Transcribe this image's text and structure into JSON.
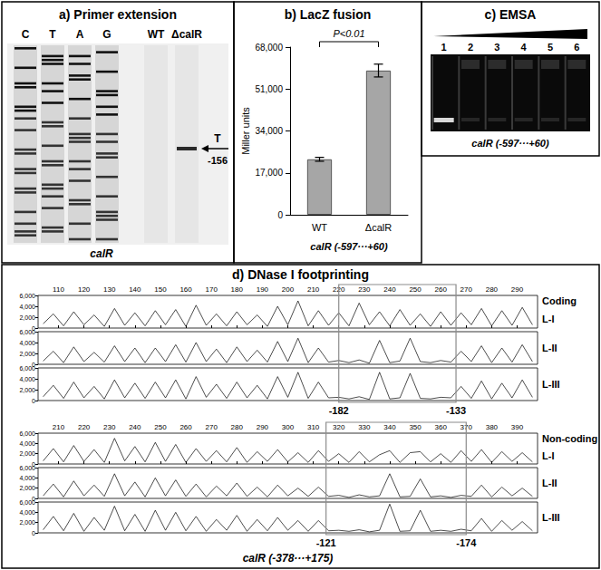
{
  "gels": {
    "primer_extension": {
      "title": "a) Primer extension",
      "lanes": [
        "C",
        "T",
        "A",
        "G",
        "WT",
        "ΔcalR"
      ],
      "band_lane": "ΔcalR",
      "arrow_text": [
        "T",
        "-156"
      ],
      "caption": "calR"
    },
    "emsa": {
      "title": "c) EMSA",
      "lanes": [
        1,
        2,
        3,
        4,
        5,
        6
      ],
      "caption": "calR (-597···+60)"
    }
  },
  "chart_data": [
    {
      "type": "bar",
      "title": "b) LacZ fusion",
      "categories": [
        "WT",
        "ΔcalR"
      ],
      "values": [
        22500,
        58500
      ],
      "errors": [
        800,
        2600
      ],
      "color": "#a6a6a6",
      "ylabel": "Miller units",
      "xlabel": "calR (-597···+60)",
      "ylim": [
        0,
        68000
      ],
      "yticks": [
        0,
        {
          "value": 17000,
          "label": "17,000"
        },
        {
          "value": 34000,
          "label": "34,000"
        },
        {
          "value": 51000,
          "label": "51,000"
        },
        {
          "value": 68000,
          "label": "68,000"
        }
      ],
      "annotation": "P<0.01",
      "grid": false
    },
    {
      "type": "line",
      "title": "d) DNase I footprinting",
      "subtitle": "Coding",
      "x": [
        104,
        108,
        112,
        116,
        120,
        124,
        128,
        132,
        136,
        140,
        144,
        148,
        152,
        156,
        160,
        164,
        168,
        172,
        176,
        180,
        184,
        188,
        192,
        196,
        200,
        204,
        208,
        212,
        216,
        220,
        224,
        228,
        232,
        236,
        240,
        244,
        248,
        252,
        256,
        260,
        264,
        268,
        272,
        276,
        280,
        284,
        288,
        292,
        296
      ],
      "series": [
        {
          "name": "L-I",
          "values": [
            800,
            2600,
            400,
            3000,
            600,
            2400,
            300,
            3600,
            500,
            2800,
            400,
            3200,
            600,
            3400,
            300,
            4200,
            500,
            2600,
            400,
            3000,
            600,
            2400,
            300,
            4000,
            600,
            5000,
            400,
            3200,
            500,
            2800,
            400,
            4600,
            600,
            3000,
            400,
            3400,
            500,
            2600,
            300,
            3000,
            500,
            2800,
            600,
            3600,
            400,
            3200,
            500,
            3800,
            600
          ]
        },
        {
          "name": "L-II",
          "values": [
            600,
            2400,
            300,
            3200,
            500,
            2200,
            400,
            3400,
            500,
            3000,
            300,
            3000,
            500,
            3600,
            400,
            4000,
            500,
            2800,
            300,
            3200,
            500,
            2600,
            400,
            4200,
            500,
            4800,
            300,
            3000,
            400,
            700,
            300,
            800,
            200,
            4400,
            300,
            600,
            4800,
            500,
            300,
            700,
            400,
            2400,
            500,
            3400,
            300,
            3000,
            400,
            3600,
            500
          ]
        },
        {
          "name": "L-III",
          "values": [
            700,
            2800,
            400,
            3400,
            500,
            2600,
            300,
            3800,
            500,
            3200,
            400,
            3400,
            500,
            3800,
            300,
            4400,
            600,
            3000,
            400,
            3400,
            500,
            2800,
            300,
            4400,
            600,
            5200,
            400,
            3400,
            500,
            600,
            300,
            700,
            200,
            5200,
            300,
            500,
            5000,
            400,
            300,
            600,
            500,
            2600,
            400,
            3600,
            300,
            3200,
            500,
            3800,
            600
          ]
        }
      ],
      "color": "#000000",
      "xlim": [
        102,
        298
      ],
      "xticks": [
        110,
        120,
        130,
        140,
        150,
        160,
        170,
        180,
        190,
        200,
        210,
        220,
        230,
        240,
        250,
        260,
        270,
        280,
        290
      ],
      "ylim": [
        0,
        6000
      ],
      "yticks": [
        0,
        {
          "value": 2000,
          "label": "2,000"
        },
        {
          "value": 4000,
          "label": "4,000"
        },
        {
          "value": 6000,
          "label": "6,000"
        }
      ],
      "footprint": {
        "range": [
          220,
          266
        ],
        "labels": [
          "-182",
          "-133"
        ]
      }
    },
    {
      "type": "line",
      "subtitle": "Non-coding",
      "xlabel": "calR (-378···+175)",
      "x": [
        204,
        208,
        212,
        216,
        220,
        224,
        228,
        232,
        236,
        240,
        244,
        248,
        252,
        256,
        260,
        264,
        268,
        272,
        276,
        280,
        284,
        288,
        292,
        296,
        300,
        304,
        308,
        312,
        316,
        320,
        324,
        328,
        332,
        336,
        340,
        344,
        348,
        352,
        356,
        360,
        364,
        368,
        372,
        376,
        380,
        384,
        388,
        392,
        396
      ],
      "series": [
        {
          "name": "L-I",
          "values": [
            600,
            3000,
            400,
            3600,
            500,
            2800,
            300,
            5000,
            600,
            3400,
            400,
            4200,
            500,
            3800,
            300,
            3000,
            500,
            2600,
            400,
            3200,
            300,
            2400,
            500,
            2800,
            400,
            2200,
            300,
            2600,
            500,
            2000,
            300,
            2400,
            400,
            1800,
            2600,
            300,
            2200,
            2400,
            400,
            2000,
            300,
            2600,
            500,
            2800,
            300,
            2400,
            500,
            2200,
            400
          ]
        },
        {
          "name": "L-II",
          "values": [
            500,
            2800,
            300,
            3400,
            500,
            2600,
            400,
            4800,
            500,
            3200,
            300,
            4000,
            500,
            3600,
            400,
            2800,
            300,
            2400,
            500,
            3000,
            400,
            2200,
            300,
            2600,
            500,
            2000,
            400,
            2200,
            400,
            600,
            200,
            700,
            300,
            500,
            4800,
            300,
            400,
            3800,
            300,
            500,
            200,
            600,
            400,
            2600,
            300,
            2200,
            500,
            2000,
            400
          ]
        },
        {
          "name": "L-III",
          "values": [
            600,
            3200,
            400,
            3800,
            300,
            3000,
            500,
            5200,
            400,
            3600,
            300,
            4400,
            500,
            4000,
            400,
            3200,
            300,
            2600,
            500,
            3400,
            300,
            2600,
            400,
            3000,
            500,
            2400,
            300,
            2400,
            400,
            500,
            300,
            600,
            200,
            500,
            5600,
            300,
            400,
            4400,
            300,
            500,
            300,
            700,
            400,
            2800,
            300,
            2400,
            500,
            2200,
            400
          ]
        }
      ],
      "color": "#000000",
      "xlim": [
        202,
        398
      ],
      "xticks": [
        210,
        220,
        230,
        240,
        250,
        260,
        270,
        280,
        290,
        300,
        310,
        320,
        330,
        340,
        350,
        360,
        370,
        380,
        390
      ],
      "ylim": [
        0,
        6000
      ],
      "yticks": [
        0,
        {
          "value": 2000,
          "label": "2,000"
        },
        {
          "value": 4000,
          "label": "4,000"
        },
        {
          "value": 6000,
          "label": "6,000"
        }
      ],
      "footprint": {
        "range": [
          315,
          370
        ],
        "labels": [
          "-121",
          "-174"
        ]
      }
    }
  ]
}
